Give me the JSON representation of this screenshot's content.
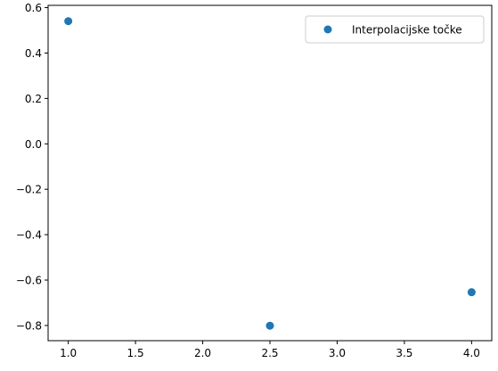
{
  "chart_data": {
    "type": "scatter",
    "title": "",
    "xlabel": "",
    "ylabel": "",
    "xlim": [
      0.85,
      4.15
    ],
    "ylim": [
      -0.867,
      0.61
    ],
    "x_ticks": [
      1.0,
      1.5,
      2.0,
      2.5,
      3.0,
      3.5,
      4.0
    ],
    "x_tick_labels": [
      "1.0",
      "1.5",
      "2.0",
      "2.5",
      "3.0",
      "3.5",
      "4.0"
    ],
    "y_ticks": [
      0.6,
      0.4,
      0.2,
      0.0,
      -0.2,
      -0.4,
      -0.6,
      -0.8
    ],
    "y_tick_labels": [
      "0.6",
      "0.4",
      "0.2",
      "0.0",
      "−0.2",
      "−0.4",
      "−0.6",
      "−0.8"
    ],
    "grid": false,
    "legend_position": "top-right",
    "series": [
      {
        "name": "Interpolacijske točke",
        "color": "#1f77b4",
        "marker": "circle",
        "x": [
          1.0,
          2.5,
          4.0
        ],
        "y": [
          0.5403,
          -0.8011,
          -0.6536
        ]
      }
    ]
  }
}
